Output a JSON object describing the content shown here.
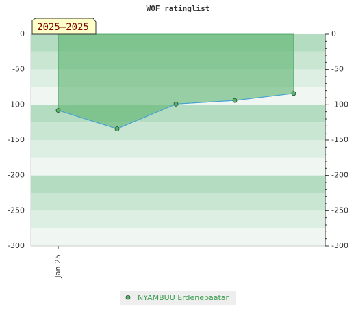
{
  "chart_data": {
    "type": "line",
    "title": "WOF ratinglist",
    "annotation": "2025—2025",
    "categories": [
      "Jan 25",
      null,
      null,
      null,
      null
    ],
    "series": [
      {
        "name": "NYAMBUU Erdenebaatar",
        "color": "#5bb36e",
        "line_color": "#4aa3d6",
        "values": [
          -108,
          -134,
          -99,
          -94,
          -84
        ]
      }
    ],
    "ylim": [
      -300,
      0
    ],
    "yticks": [
      0,
      -50,
      -100,
      -150,
      -200,
      -250,
      -300
    ],
    "y2lim": [
      -300,
      0
    ],
    "y2ticks": [
      0,
      -50,
      -100,
      -150,
      -200,
      -250,
      -300
    ]
  }
}
